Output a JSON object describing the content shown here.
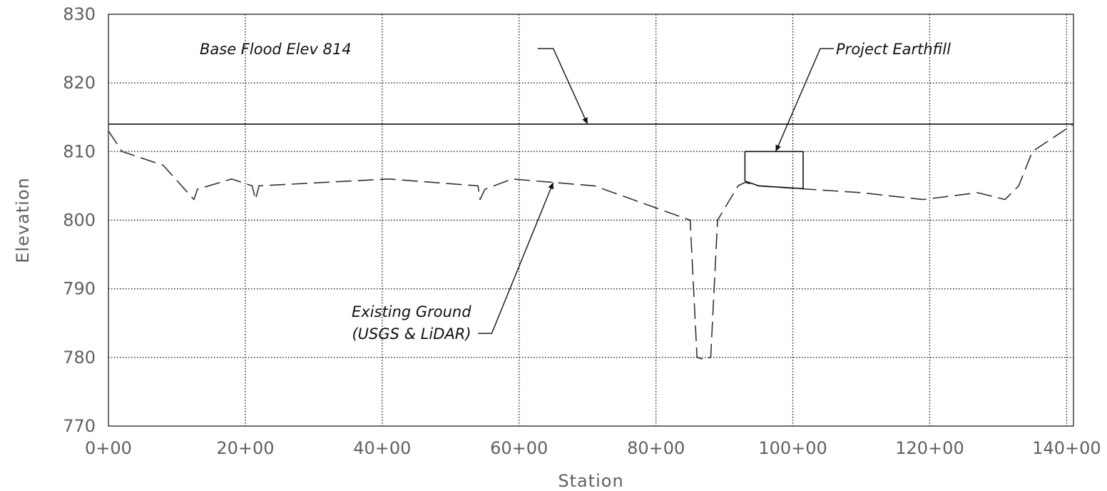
{
  "chart_data": {
    "type": "line",
    "xlabel": "Station",
    "ylabel": "Elevation",
    "xlim": [
      0,
      141
    ],
    "ylim": [
      770,
      830
    ],
    "x_ticks": [
      {
        "value": 0,
        "label": "0+00"
      },
      {
        "value": 20,
        "label": "20+00"
      },
      {
        "value": 40,
        "label": "40+00"
      },
      {
        "value": 60,
        "label": "60+00"
      },
      {
        "value": 80,
        "label": "80+00"
      },
      {
        "value": 100,
        "label": "100+00"
      },
      {
        "value": 120,
        "label": "120+00"
      },
      {
        "value": 140,
        "label": "140+00"
      }
    ],
    "y_ticks": [
      {
        "value": 770,
        "label": "770"
      },
      {
        "value": 780,
        "label": "780"
      },
      {
        "value": 790,
        "label": "790"
      },
      {
        "value": 800,
        "label": "800"
      },
      {
        "value": 810,
        "label": "810"
      },
      {
        "value": 820,
        "label": "820"
      },
      {
        "value": 830,
        "label": "830"
      }
    ],
    "grid": true,
    "series": [
      {
        "style": "solid",
        "color": "#111111",
        "x": [
          0,
          141
        ],
        "y": [
          814,
          814
        ]
      },
      {
        "style": "dashed",
        "color": "#333333",
        "x": [
          0,
          2,
          8,
          12.5,
          13,
          18,
          21,
          21.5,
          22,
          41,
          54,
          54.3,
          55,
          59,
          71,
          85,
          86,
          87,
          88,
          89,
          92,
          93,
          95,
          101,
          110,
          119,
          127,
          131,
          133,
          135,
          141
        ],
        "y": [
          813,
          810,
          808,
          803,
          804.5,
          806,
          805,
          803,
          805,
          806,
          805,
          803,
          804.5,
          806,
          805,
          800,
          780,
          779.7,
          780,
          800,
          805,
          805.5,
          805,
          804.6,
          804,
          803,
          804,
          803,
          805,
          810,
          814
        ]
      },
      {
        "style": "solid",
        "color": "#111111",
        "x": [
          93,
          93,
          101.5,
          101.5,
          95,
          93
        ],
        "y": [
          805.7,
          810,
          810,
          804.6,
          805,
          805.7
        ]
      }
    ],
    "annotations": [
      {
        "id": "base-flood",
        "lines": [
          "Base Flood Elev 814"
        ],
        "text_at": [
          35.5,
          825
        ],
        "anchor": "end",
        "leader_start": [
          62.7,
          825
        ],
        "leader_elbow": [
          65,
          825
        ],
        "arrow_to": [
          70,
          814
        ]
      },
      {
        "id": "earthfill",
        "lines": [
          "Project Earthfill"
        ],
        "text_at": [
          106.3,
          825
        ],
        "anchor": "start",
        "leader_start": [
          106,
          825
        ],
        "leader_elbow": [
          104,
          825
        ],
        "arrow_to": [
          97.5,
          810
        ]
      },
      {
        "id": "existing-ground",
        "lines": [
          "Existing Ground",
          "(USGS & LiDAR)"
        ],
        "text_at": [
          53,
          783.5
        ],
        "anchor": "end",
        "leader_start": [
          54,
          783.5
        ],
        "leader_elbow": [
          56,
          783.5
        ],
        "arrow_to": [
          65,
          805.5
        ]
      }
    ]
  }
}
